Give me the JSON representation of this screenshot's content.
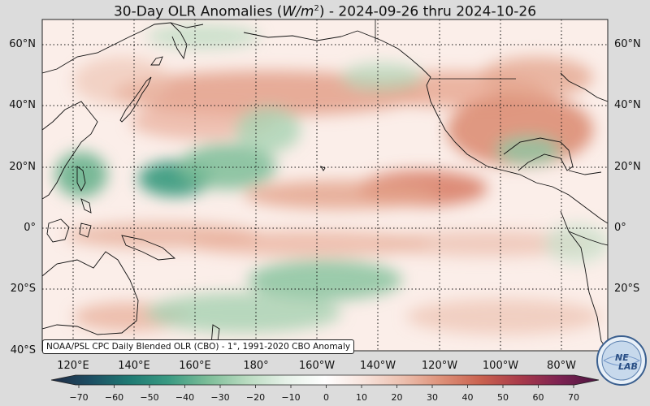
{
  "title": {
    "prefix": "30-Day OLR Anomalies (",
    "unit_base": "W/m",
    "unit_exp": "2",
    "suffix": ") - 2024-09-26 thru 2024-10-26"
  },
  "credit": "NOAA/PSL CPC Daily Blended OLR (CBO) - 1°, 1991-2020 CBO Anomaly",
  "logo_text": {
    "line1": "NE",
    "line2": "LAB"
  },
  "lat_labels": [
    "60°N",
    "40°N",
    "20°N",
    "0°",
    "20°S",
    "40°S"
  ],
  "lon_labels": [
    "120°E",
    "140°E",
    "160°E",
    "180°",
    "160°W",
    "140°W",
    "120°W",
    "100°W",
    "80°W"
  ],
  "colorbar": {
    "ticks": [
      "−70",
      "−60",
      "−50",
      "−40",
      "−30",
      "−20",
      "−10",
      "0",
      "10",
      "20",
      "30",
      "40",
      "50",
      "60",
      "70"
    ],
    "colors": [
      "#1f2a44",
      "#1d4e63",
      "#1f7a73",
      "#3a9a82",
      "#7cbd98",
      "#b9dbc0",
      "#e6f1e8",
      "#ffffff",
      "#f7e3dc",
      "#ecbfae",
      "#dd8f77",
      "#c9614f",
      "#a83a4a",
      "#7d2252",
      "#4b1540"
    ]
  },
  "map_extent": {
    "lon_range": [
      110,
      290
    ],
    "lat_range": [
      -40,
      68
    ]
  },
  "anomaly_regions": [
    {
      "label": "negative-westpac",
      "lon": 155,
      "lat": 15,
      "value": -35
    },
    {
      "label": "negative-philippines",
      "lon": 122,
      "lat": 18,
      "value": -30
    },
    {
      "label": "negative-southpac",
      "lon": 190,
      "lat": -18,
      "value": -25
    },
    {
      "label": "negative-gulf",
      "lon": 275,
      "lat": 25,
      "value": -30
    },
    {
      "label": "positive-npac",
      "lon": 195,
      "lat": 40,
      "value": 25
    },
    {
      "label": "positive-ecpac",
      "lon": 240,
      "lat": 12,
      "value": 30
    },
    {
      "label": "positive-usa",
      "lon": 260,
      "lat": 38,
      "value": 30
    }
  ]
}
